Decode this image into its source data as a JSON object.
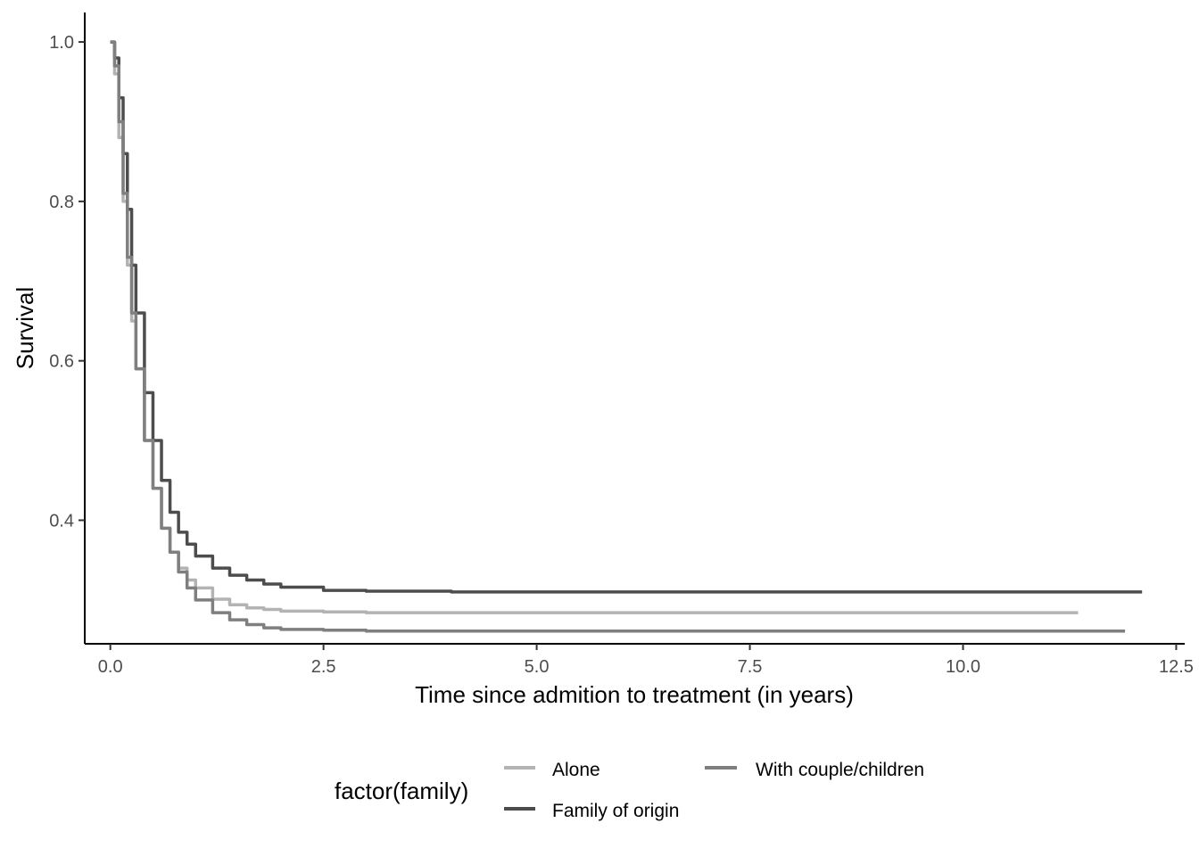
{
  "chart_data": {
    "type": "line",
    "step": true,
    "title": "",
    "xlabel": "Time since admition to treatment (in years)",
    "ylabel": "Survival",
    "xlim": [
      -0.3,
      12.6
    ],
    "ylim": [
      0.245,
      1.037
    ],
    "xticks": [
      0,
      2.5,
      5,
      7.5,
      10,
      12.5
    ],
    "xtick_labels": [
      "0.0",
      "2.5",
      "5.0",
      "7.5",
      "10.0",
      "12.5"
    ],
    "yticks": [
      0.4,
      0.6,
      0.8,
      1.0
    ],
    "ytick_labels": [
      "0.4",
      "0.6",
      "0.8",
      "1.0"
    ],
    "grid": false,
    "legend": {
      "title": "factor(family)",
      "placement": "bottom"
    },
    "series": [
      {
        "name": "Alone",
        "color": "#b3b3b3",
        "x": [
          0,
          0.05,
          0.1,
          0.15,
          0.2,
          0.25,
          0.3,
          0.4,
          0.5,
          0.6,
          0.7,
          0.8,
          0.9,
          1.0,
          1.2,
          1.4,
          1.6,
          1.8,
          2.0,
          2.5,
          3.0,
          5.0,
          8.0,
          11.35
        ],
        "y": [
          1.0,
          0.96,
          0.88,
          0.8,
          0.72,
          0.65,
          0.59,
          0.5,
          0.44,
          0.39,
          0.36,
          0.34,
          0.325,
          0.315,
          0.301,
          0.294,
          0.29,
          0.288,
          0.286,
          0.285,
          0.284,
          0.284,
          0.284,
          0.284
        ]
      },
      {
        "name": "Family of origin",
        "color": "#4d4d4d",
        "x": [
          0,
          0.05,
          0.1,
          0.15,
          0.2,
          0.25,
          0.3,
          0.4,
          0.5,
          0.6,
          0.7,
          0.8,
          0.9,
          1.0,
          1.2,
          1.4,
          1.6,
          1.8,
          2.0,
          2.5,
          3.0,
          4.0,
          6.0,
          9.0,
          12.1
        ],
        "y": [
          1.0,
          0.98,
          0.93,
          0.86,
          0.79,
          0.72,
          0.66,
          0.56,
          0.5,
          0.45,
          0.41,
          0.385,
          0.37,
          0.355,
          0.34,
          0.331,
          0.325,
          0.32,
          0.316,
          0.312,
          0.311,
          0.31,
          0.31,
          0.31,
          0.31
        ]
      },
      {
        "name": "With couple/children",
        "color": "#7f7f7f",
        "x": [
          0,
          0.05,
          0.1,
          0.15,
          0.2,
          0.25,
          0.3,
          0.4,
          0.5,
          0.6,
          0.7,
          0.8,
          0.9,
          1.0,
          1.2,
          1.4,
          1.6,
          1.8,
          2.0,
          2.5,
          3.0,
          5.0,
          8.0,
          11.9
        ],
        "y": [
          1.0,
          0.97,
          0.9,
          0.81,
          0.73,
          0.66,
          0.59,
          0.5,
          0.44,
          0.39,
          0.36,
          0.335,
          0.315,
          0.3,
          0.284,
          0.275,
          0.269,
          0.265,
          0.263,
          0.262,
          0.261,
          0.261,
          0.261,
          0.261
        ]
      }
    ]
  }
}
